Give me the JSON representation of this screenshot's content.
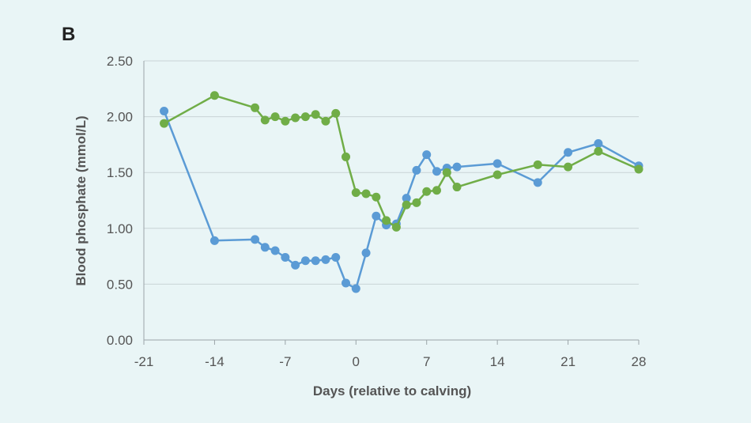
{
  "panel_label": "B",
  "chart_data": {
    "type": "line",
    "title": "",
    "xlabel": "Days (relative to calving)",
    "ylabel": "Blood phosphate (mmol/L)",
    "xlim": [
      -21,
      28
    ],
    "ylim": [
      0,
      2.5
    ],
    "xticks": [
      -21,
      -14,
      -7,
      0,
      7,
      14,
      21,
      28
    ],
    "xtick_labels": [
      "-21",
      "-14",
      "-7",
      "0",
      "7",
      "14",
      "21",
      "28"
    ],
    "yticks": [
      0,
      0.5,
      1,
      1.5,
      2,
      2.5
    ],
    "ytick_labels": [
      "0.00",
      "0.50",
      "1.00",
      "1.50",
      "2.00",
      "2.50"
    ],
    "grid": "horizontal",
    "legend": "none",
    "series": [
      {
        "color": "#5b9bd5",
        "x": [
          -19,
          -14,
          -10,
          -9,
          -8,
          -7,
          -6,
          -5,
          -4,
          -3,
          -2,
          -1,
          0,
          1,
          2,
          3,
          4,
          5,
          6,
          7,
          8,
          9,
          10,
          14,
          18,
          21,
          24,
          28
        ],
        "y": [
          2.05,
          0.89,
          0.9,
          0.83,
          0.8,
          0.74,
          0.67,
          0.71,
          0.71,
          0.72,
          0.74,
          0.51,
          0.46,
          0.78,
          1.11,
          1.03,
          1.04,
          1.27,
          1.52,
          1.66,
          1.51,
          1.54,
          1.55,
          1.58,
          1.41,
          1.68,
          1.76,
          1.56
        ]
      },
      {
        "color": "#70ad47",
        "x": [
          -19,
          -14,
          -10,
          -9,
          -8,
          -7,
          -6,
          -5,
          -4,
          -3,
          -2,
          -1,
          0,
          1,
          2,
          3,
          4,
          5,
          6,
          7,
          8,
          9,
          10,
          14,
          18,
          21,
          24,
          28
        ],
        "y": [
          1.94,
          2.19,
          2.08,
          1.97,
          2.0,
          1.96,
          1.99,
          2.0,
          2.02,
          1.96,
          2.03,
          1.64,
          1.32,
          1.31,
          1.28,
          1.07,
          1.01,
          1.21,
          1.23,
          1.33,
          1.34,
          1.5,
          1.37,
          1.48,
          1.57,
          1.55,
          1.69,
          1.53
        ]
      }
    ]
  }
}
